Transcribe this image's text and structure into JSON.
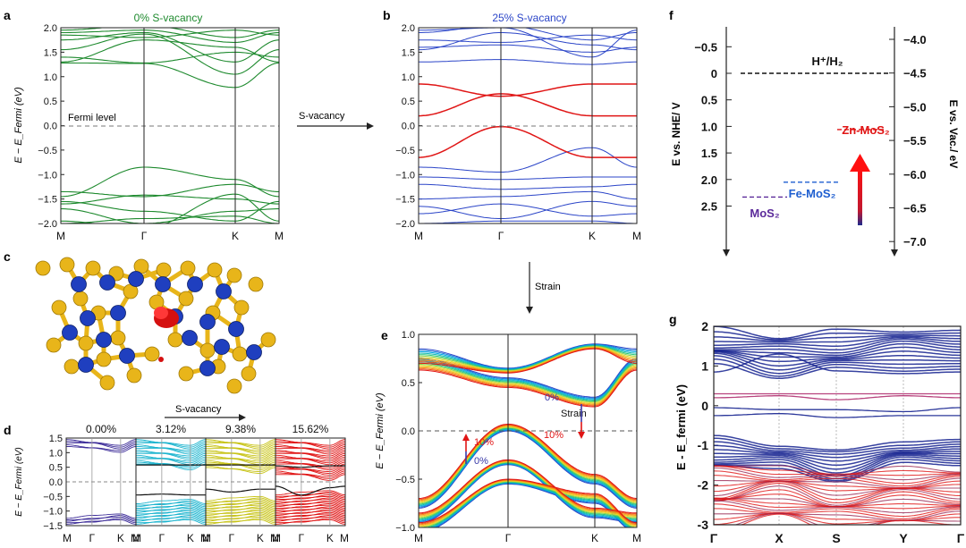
{
  "panel_letters": {
    "a": "a",
    "b": "b",
    "c": "c",
    "d": "d",
    "e": "e",
    "f": "f",
    "g": "g"
  },
  "colors": {
    "green": "#1e8a2e",
    "blue": "#2b45c8",
    "red": "#e01515",
    "navy": "#14218f",
    "black": "#111111",
    "ball_s": "#e8b51a",
    "ball_mo": "#1f3fbf",
    "vacancy": "#d51010"
  },
  "arrows": {
    "s_vacancy": "S-vacancy",
    "strain": "Strain",
    "c_s_vacancy": "S-vacancy"
  },
  "chart_data": [
    {
      "id": "a",
      "type": "line",
      "title": "0% S-vacancy",
      "ylabel": "E − E_Fermi (eV)",
      "ylim": [
        -2.0,
        2.0
      ],
      "yticks": [
        "2.0",
        "1.5",
        "1.0",
        "0.5",
        "0.0",
        "−0.5",
        "−1.0",
        "−1.5",
        "−2.0"
      ],
      "xticks": [
        "M",
        "Γ",
        "K",
        "M"
      ],
      "annotation": "Fermi level",
      "series": [
        {
          "name": "bands",
          "color": "#1e8a2e"
        }
      ]
    },
    {
      "id": "b",
      "type": "line",
      "title": "25% S-vacancy",
      "ylim": [
        -2.0,
        2.0
      ],
      "yticks": [
        "2.0",
        "1.5",
        "1.0",
        "0.5",
        "0.0",
        "−0.5",
        "−1.0",
        "−1.5",
        "−2.0"
      ],
      "xticks": [
        "M",
        "Γ",
        "K",
        "M"
      ],
      "series": [
        {
          "name": "host bands",
          "color": "#2b45c8"
        },
        {
          "name": "defect bands",
          "color": "#e01515"
        }
      ]
    },
    {
      "id": "d",
      "type": "line",
      "ylabel": "E − E_Fermi (eV)",
      "ylim": [
        -1.5,
        1.5
      ],
      "yticks": [
        "1.5",
        "1.0",
        "0.5",
        "0.0",
        "−0.5",
        "−1.0",
        "−1.5"
      ],
      "subplots": [
        {
          "title": "0.00%",
          "color": "#3f2f9a",
          "xticks": [
            "M",
            "Γ",
            "K",
            "M"
          ]
        },
        {
          "title": "3.12%",
          "color": "#1fb5cf",
          "xticks": [
            "M",
            "Γ",
            "K",
            "M"
          ]
        },
        {
          "title": "9.38%",
          "color": "#c8c41a",
          "xticks": [
            "M",
            "Γ",
            "K",
            "M"
          ]
        },
        {
          "title": "15.62%",
          "color": "#e01515",
          "xticks": [
            "M",
            "Γ",
            "K",
            "M"
          ]
        }
      ]
    },
    {
      "id": "e",
      "type": "line",
      "ylabel": "E − E_Fermi (eV)",
      "ylim": [
        -1.0,
        1.0
      ],
      "yticks": [
        "1.0",
        "0.5",
        "0.0",
        "−0.5",
        "−1.0"
      ],
      "xticks": [
        "M",
        "Γ",
        "K",
        "M"
      ],
      "annotations": {
        "top_low": "0%",
        "top_strain": "Strain",
        "top_high": "10%",
        "left_high": "10%",
        "left_low": "0%"
      },
      "strain_levels": [
        0,
        1,
        2,
        3,
        4,
        5,
        6,
        7,
        8,
        9,
        10
      ]
    },
    {
      "id": "f",
      "type": "diagram",
      "ylabel_left": "E vs. NHE/ V",
      "ylabel_right": "E vs. Vac./ eV",
      "left_ticks": [
        "−0.5",
        "0",
        "0.5",
        "1.0",
        "1.5",
        "2.0",
        "2.5"
      ],
      "left_values": [
        -0.5,
        0,
        0.5,
        1.0,
        1.5,
        2.0,
        2.5
      ],
      "right_ticks": [
        "−4.0",
        "−4.5",
        "−5.0",
        "−5.5",
        "−6.0",
        "−6.5",
        "−7.0"
      ],
      "levels": [
        {
          "label": "H⁺/H₂",
          "value": 0.0,
          "color": "#111111"
        },
        {
          "label": "Zn-MoS₂",
          "value": 1.06,
          "color": "#e01515"
        },
        {
          "label": "Fe-MoS₂",
          "value": 2.05,
          "color": "#1f5fd0"
        },
        {
          "label": "MoS₂",
          "value": 2.33,
          "color": "#5b2a9a"
        }
      ]
    },
    {
      "id": "g",
      "type": "line",
      "ylabel": "E - E_fermi (eV)",
      "ylim": [
        -3,
        2
      ],
      "yticks": [
        "2",
        "1",
        "0",
        "-1",
        "-2",
        "-3"
      ],
      "xticks": [
        "Γ",
        "X",
        "S",
        "Y",
        "Γ"
      ]
    }
  ]
}
